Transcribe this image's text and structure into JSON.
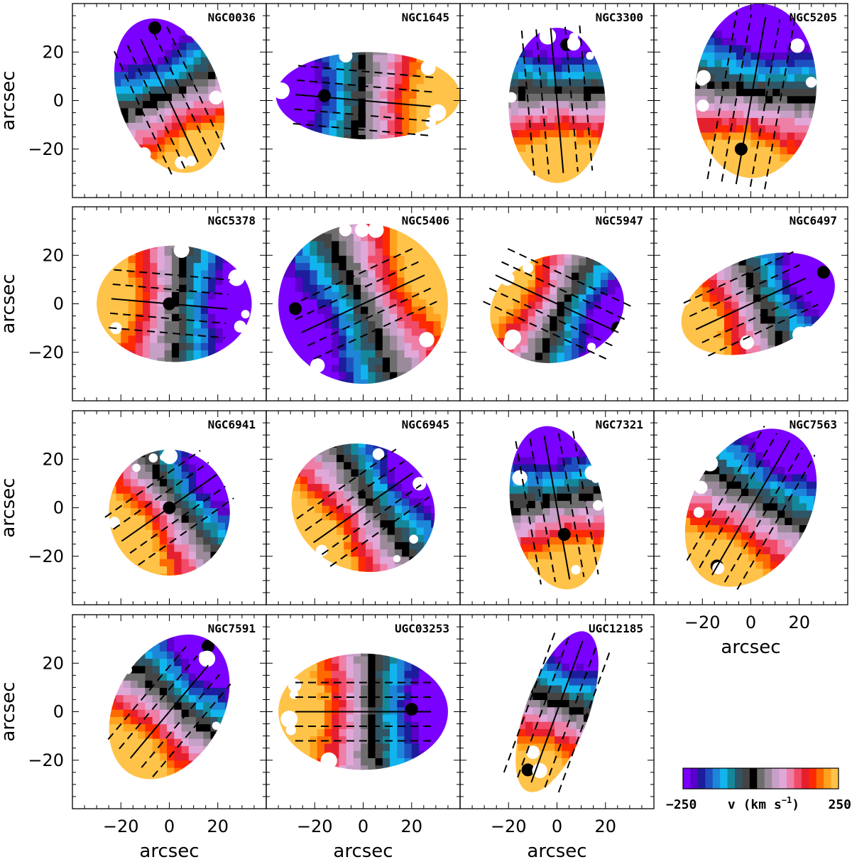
{
  "chart_data": {
    "type": "heatmap",
    "description_kind": "velocity field maps",
    "axis_unit_label": "arcsec",
    "x_ticks": [
      -20,
      0,
      20
    ],
    "y_ticks": [
      20,
      0,
      -20
    ],
    "xlim": [
      -40,
      40
    ],
    "ylim": [
      -40,
      40
    ],
    "colorbar": {
      "min": -250,
      "max": 250,
      "min_label": "−250",
      "max_label": "250",
      "label": "v (km s",
      "label_exp": "−1",
      "label_close": ")",
      "colors": [
        "#7a00ff",
        "#5a00c8",
        "#1c1c9c",
        "#1f4fbf",
        "#1e86d8",
        "#12b4ee",
        "#14889a",
        "#2f5566",
        "#444444",
        "#000000",
        "#6d6d6d",
        "#9a8a9a",
        "#c7a0c7",
        "#e0a8d8",
        "#ee7fa7",
        "#f04c6a",
        "#e61f2f",
        "#ff2a00",
        "#ff6a00",
        "#ffa31f",
        "#ffc34a"
      ]
    },
    "galaxies": [
      {
        "name": "NGC0036",
        "pa": 155,
        "half_length": 28,
        "center": [
          0,
          0
        ],
        "blob": {
          "cx": 0,
          "cy": 2,
          "rx": 21,
          "ry": 33,
          "rot": -20
        },
        "kin_dir": 155,
        "dip": [
          -6,
          30
        ],
        "has_slits": true
      },
      {
        "name": "NGC1645",
        "pa": 95,
        "half_length": 28,
        "center": [
          0,
          0
        ],
        "blob": {
          "cx": 2,
          "cy": 2,
          "rx": 38,
          "ry": 18,
          "rot": 0
        },
        "kin_dir": 95,
        "dip": [
          -16,
          2
        ],
        "has_slits": true
      },
      {
        "name": "NGC3300",
        "pa": 175,
        "half_length": 30,
        "center": [
          0,
          0
        ],
        "blob": {
          "cx": 0,
          "cy": -2,
          "rx": 20,
          "ry": 32,
          "rot": 0
        },
        "kin_dir": 180,
        "dip": [
          4,
          23
        ],
        "has_slits": true
      },
      {
        "name": "NGC5205",
        "pa": 10,
        "half_length": 35,
        "center": [
          0,
          0
        ],
        "blob": {
          "cx": 2,
          "cy": 4,
          "rx": 25,
          "ry": 36,
          "rot": 5
        },
        "kin_dir": 190,
        "dip": [
          -4,
          -20
        ],
        "has_slits": true
      },
      {
        "name": "NGC5378",
        "pa": 95,
        "half_length": 24,
        "center": [
          0,
          0
        ],
        "blob": {
          "cx": 2,
          "cy": 0,
          "rx": 32,
          "ry": 24,
          "rot": 0
        },
        "kin_dir": 275,
        "dip": [
          0,
          0
        ],
        "has_slits": true
      },
      {
        "name": "NGC5406",
        "pa": 65,
        "half_length": 28,
        "center": [
          0,
          0
        ],
        "blob": {
          "cx": 0,
          "cy": 0,
          "rx": 35,
          "ry": 33,
          "rot": 0
        },
        "kin_dir": 65,
        "dip": [
          -28,
          -2
        ],
        "has_slits": true
      },
      {
        "name": "NGC5947",
        "pa": 115,
        "half_length": 28,
        "center": [
          0,
          0
        ],
        "blob": {
          "cx": 0,
          "cy": -2,
          "rx": 28,
          "ry": 22,
          "rot": -15
        },
        "kin_dir": 295,
        "dip": [
          25,
          -10
        ],
        "has_slits": true
      },
      {
        "name": "NGC6497",
        "pa": 65,
        "half_length": 25,
        "center": [
          0,
          0
        ],
        "blob": {
          "cx": 3,
          "cy": 0,
          "rx": 33,
          "ry": 19,
          "rot": -20
        },
        "kin_dir": 245,
        "dip": [
          30,
          13
        ],
        "has_slits": true
      },
      {
        "name": "NGC6941",
        "pa": 55,
        "half_length": 24,
        "center": [
          0,
          0
        ],
        "blob": {
          "cx": 0,
          "cy": -2,
          "rx": 25,
          "ry": 26,
          "rot": 0
        },
        "kin_dir": 235,
        "dip": [
          0,
          0
        ],
        "has_slits": true
      },
      {
        "name": "NGC6945",
        "pa": 55,
        "half_length": 25,
        "center": [
          0,
          0
        ],
        "blob": {
          "cx": 0,
          "cy": 0,
          "rx": 30,
          "ry": 26,
          "rot": 20
        },
        "kin_dir": 235,
        "dip": [
          22,
          23
        ],
        "has_slits": true
      },
      {
        "name": "NGC7321",
        "pa": 170,
        "half_length": 30,
        "center": [
          0,
          0
        ],
        "blob": {
          "cx": 0,
          "cy": 0,
          "rx": 19,
          "ry": 34,
          "rot": -10
        },
        "kin_dir": 170,
        "dip": [
          3,
          -11
        ],
        "has_slits": true
      },
      {
        "name": "NGC7563",
        "pa": 30,
        "half_length": 32,
        "center": [
          0,
          0
        ],
        "blob": {
          "cx": 0,
          "cy": 0,
          "rx": 24,
          "ry": 35,
          "rot": 30
        },
        "kin_dir": 210,
        "dip": [
          -14,
          -24
        ],
        "has_slits": true
      },
      {
        "name": "NGC7591",
        "pa": 40,
        "half_length": 25,
        "center": [
          0,
          0
        ],
        "blob": {
          "cx": 0,
          "cy": 2,
          "rx": 22,
          "ry": 32,
          "rot": 30
        },
        "kin_dir": 220,
        "dip": [
          16,
          27
        ],
        "has_slits": true
      },
      {
        "name": "UGC03253",
        "pa": 90,
        "half_length": 28,
        "center": [
          0,
          0
        ],
        "blob": {
          "cx": 0,
          "cy": 0,
          "rx": 35,
          "ry": 24,
          "rot": 0
        },
        "kin_dir": 270,
        "dip": [
          20,
          1
        ],
        "has_slits": true
      },
      {
        "name": "UGC12185",
        "pa": 20,
        "half_length": 31,
        "center": [
          0,
          0
        ],
        "blob": {
          "cx": 0,
          "cy": 0,
          "rx": 13,
          "ry": 35,
          "rot": 20
        },
        "kin_dir": 200,
        "dip": [
          -12,
          -24
        ],
        "has_slits": true
      }
    ]
  }
}
